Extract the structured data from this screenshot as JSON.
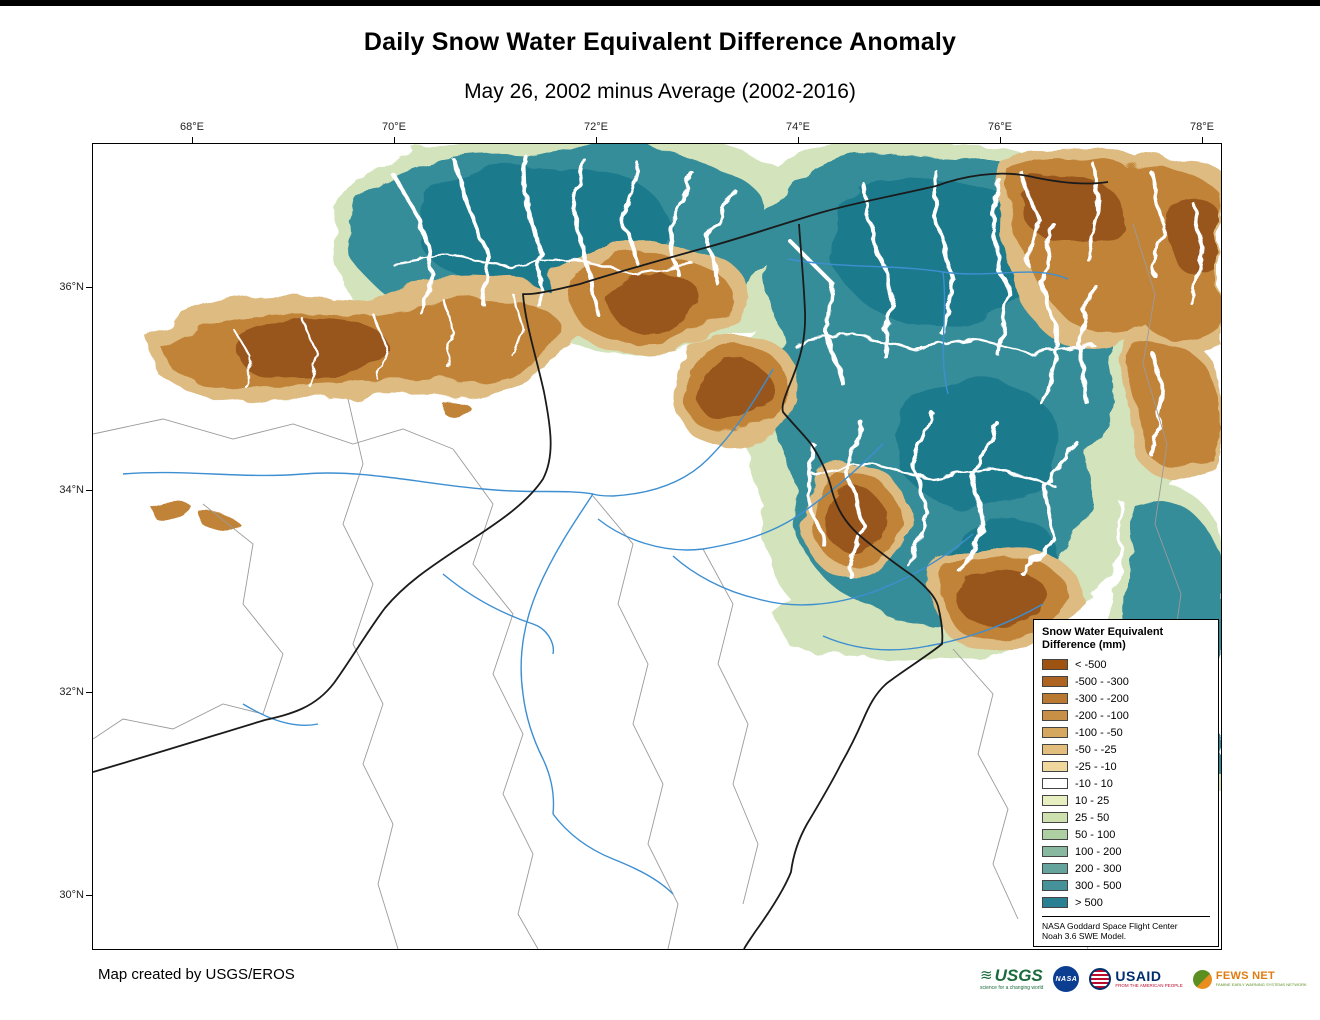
{
  "title": "Daily Snow Water Equivalent Difference Anomaly",
  "subtitle": "May 26, 2002 minus Average (2002-2016)",
  "map": {
    "lon_labels": [
      "68°E",
      "70°E",
      "72°E",
      "74°E",
      "76°E",
      "78°E"
    ],
    "lat_labels": [
      "36°N",
      "34°N",
      "32°N",
      "30°N"
    ]
  },
  "legend": {
    "title_lines": [
      "Snow Water Equivalent",
      "Difference (mm)"
    ],
    "entries": [
      {
        "label": "< -500",
        "color": "#9e5310"
      },
      {
        "label": "-500 - -300",
        "color": "#ad6420"
      },
      {
        "label": "-300 - -200",
        "color": "#ba7930"
      },
      {
        "label": "-200 - -100",
        "color": "#c88f46"
      },
      {
        "label": "-100 - -50",
        "color": "#d6a75f"
      },
      {
        "label": "-50 - -25",
        "color": "#e2bd7b"
      },
      {
        "label": "-25 - -10",
        "color": "#efd79e"
      },
      {
        "label": "-10 - 10",
        "color": "#ffffff"
      },
      {
        "label": "10 - 25",
        "color": "#e7eec0"
      },
      {
        "label": "25 - 50",
        "color": "#cfe0af"
      },
      {
        "label": "50 - 100",
        "color": "#aecfa2"
      },
      {
        "label": "100 - 200",
        "color": "#88b9a0"
      },
      {
        "label": "200 - 300",
        "color": "#64a49d"
      },
      {
        "label": "300 - 500",
        "color": "#45929b"
      },
      {
        "label": "> 500",
        "color": "#2a8093"
      }
    ],
    "source_lines": [
      "NASA Goddard Space Flight Center",
      "Noah 3.6 SWE Model."
    ]
  },
  "footer": {
    "credit": "Map created by USGS/EROS",
    "logos": {
      "usgs": {
        "name": "USGS",
        "tagline": "science for a changing world"
      },
      "nasa": {
        "name": "NASA"
      },
      "usaid": {
        "name": "USAID",
        "tagline": "FROM THE AMERICAN PEOPLE"
      },
      "fews_net": {
        "name": "FEWS NET",
        "tagline": "FAMINE EARLY WARNING SYSTEMS NETWORK"
      }
    }
  }
}
